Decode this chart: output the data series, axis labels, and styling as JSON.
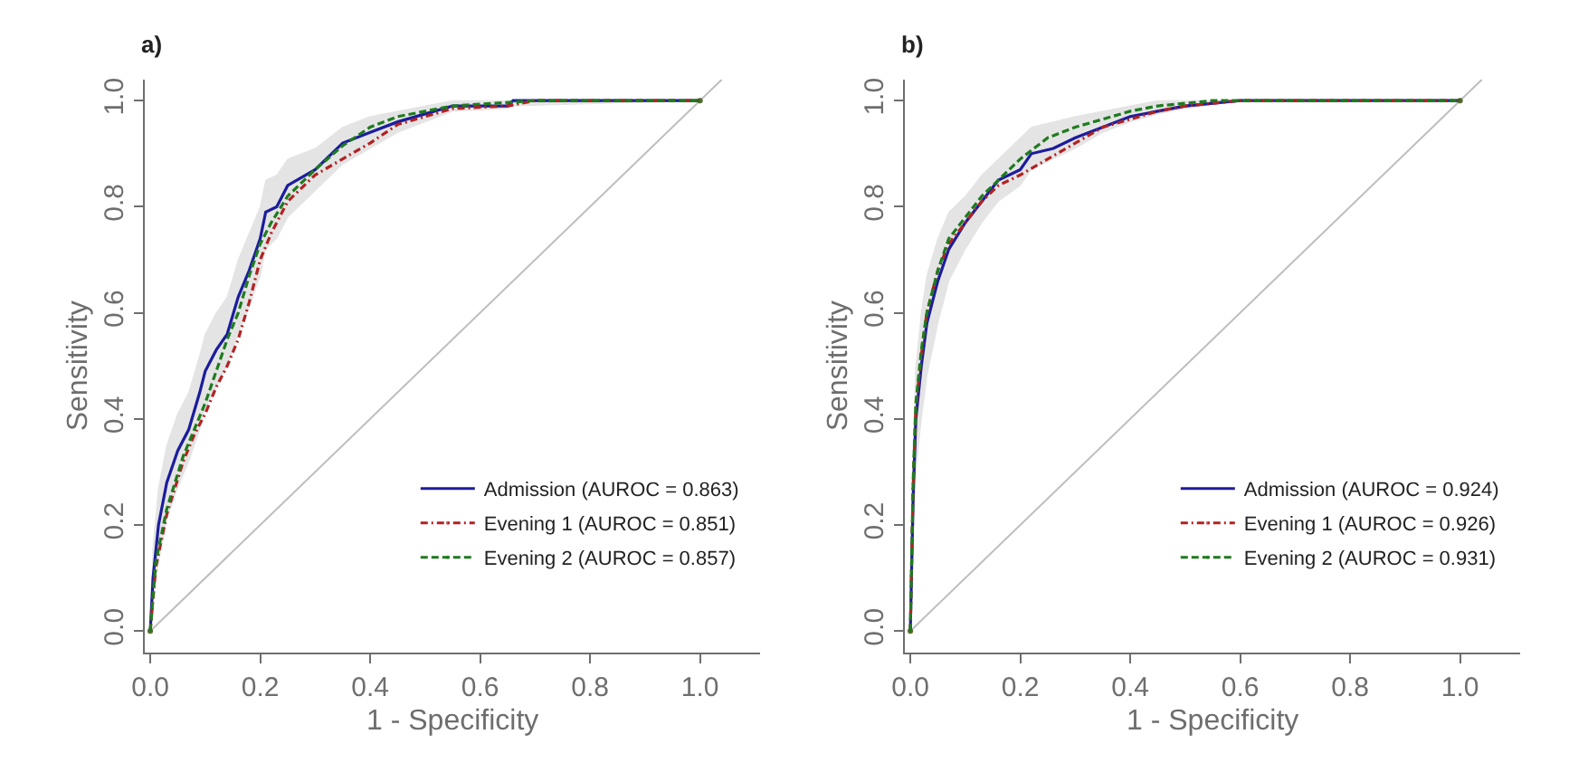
{
  "chart_data": [
    {
      "type": "line",
      "title": "a)",
      "xlabel": "1 - Specificity",
      "ylabel": "Sensitivity",
      "xlim": [
        -0.01,
        1.11
      ],
      "ylim": [
        -0.04,
        1.04
      ],
      "xticks": [
        {
          "value": 0,
          "label": "0.0"
        },
        {
          "value": 0.2,
          "label": "0.2"
        },
        {
          "value": 0.4,
          "label": "0.4"
        },
        {
          "value": 0.6,
          "label": "0.6"
        },
        {
          "value": 0.8,
          "label": "0.8"
        },
        {
          "value": 1,
          "label": "1.0"
        }
      ],
      "yticks": [
        {
          "value": 0,
          "label": "0.0"
        },
        {
          "value": 0.2,
          "label": "0.2"
        },
        {
          "value": 0.4,
          "label": "0.4"
        },
        {
          "value": 0.6,
          "label": "0.6"
        },
        {
          "value": 0.8,
          "label": "0.8"
        },
        {
          "value": 1,
          "label": "1.0"
        }
      ],
      "legend": "bottom right",
      "marker": "none",
      "series": [
        {
          "color": "#bebebe",
          "x": [
            0,
            1.04
          ],
          "values": [
            0,
            1.04
          ]
        },
        {
          "name": "Admission (AUROC = 0.863)",
          "color": "#1c1c9e",
          "line_style": "solid",
          "x": [
            0,
            0.005,
            0.015,
            0.03,
            0.05,
            0.07,
            0.09,
            0.1,
            0.12,
            0.14,
            0.16,
            0.18,
            0.2,
            0.21,
            0.23,
            0.25,
            0.3,
            0.35,
            0.4,
            0.45,
            0.5,
            0.55,
            0.65,
            0.66,
            1
          ],
          "values": [
            0,
            0.1,
            0.2,
            0.28,
            0.34,
            0.38,
            0.45,
            0.49,
            0.53,
            0.56,
            0.63,
            0.68,
            0.74,
            0.79,
            0.8,
            0.84,
            0.87,
            0.92,
            0.94,
            0.96,
            0.975,
            0.99,
            0.99,
            1,
            1
          ],
          "lower": [
            0,
            0.05,
            0.13,
            0.21,
            0.27,
            0.32,
            0.38,
            0.42,
            0.46,
            0.5,
            0.56,
            0.61,
            0.67,
            0.72,
            0.74,
            0.78,
            0.83,
            0.88,
            0.91,
            0.94,
            0.96,
            0.98,
            0.985,
            0.99,
            1
          ],
          "upper": [
            0,
            0.16,
            0.27,
            0.35,
            0.41,
            0.45,
            0.52,
            0.56,
            0.6,
            0.63,
            0.7,
            0.75,
            0.8,
            0.85,
            0.86,
            0.89,
            0.91,
            0.95,
            0.97,
            0.98,
            0.99,
            1,
            1,
            1,
            1
          ]
        },
        {
          "name": "Evening 1 (AUROC = 0.851)",
          "color": "#b22222",
          "line_style": "dashdot",
          "x": [
            0,
            0.01,
            0.03,
            0.06,
            0.08,
            0.1,
            0.12,
            0.14,
            0.16,
            0.18,
            0.2,
            0.22,
            0.25,
            0.3,
            0.35,
            0.4,
            0.45,
            0.5,
            0.55,
            0.65,
            0.7,
            1
          ],
          "values": [
            0,
            0.12,
            0.22,
            0.32,
            0.37,
            0.41,
            0.46,
            0.5,
            0.55,
            0.62,
            0.7,
            0.75,
            0.81,
            0.86,
            0.89,
            0.92,
            0.955,
            0.97,
            0.985,
            0.99,
            1,
            1
          ]
        },
        {
          "name": "Evening 2 (AUROC = 0.857)",
          "color": "#1e7b1e",
          "line_style": "dashed",
          "x": [
            0,
            0.01,
            0.03,
            0.06,
            0.08,
            0.1,
            0.12,
            0.14,
            0.16,
            0.18,
            0.2,
            0.22,
            0.25,
            0.3,
            0.35,
            0.4,
            0.45,
            0.5,
            0.55,
            0.7,
            1
          ],
          "values": [
            0,
            0.13,
            0.23,
            0.33,
            0.38,
            0.43,
            0.49,
            0.55,
            0.6,
            0.67,
            0.73,
            0.77,
            0.82,
            0.87,
            0.915,
            0.95,
            0.97,
            0.98,
            0.99,
            1,
            1
          ]
        }
      ]
    },
    {
      "type": "line",
      "title": "b)",
      "xlabel": "1 - Specificity",
      "ylabel": "Sensitivity",
      "xlim": [
        -0.01,
        1.11
      ],
      "ylim": [
        -0.04,
        1.04
      ],
      "xticks": [
        {
          "value": 0,
          "label": "0.0"
        },
        {
          "value": 0.2,
          "label": "0.2"
        },
        {
          "value": 0.4,
          "label": "0.4"
        },
        {
          "value": 0.6,
          "label": "0.6"
        },
        {
          "value": 0.8,
          "label": "0.8"
        },
        {
          "value": 1,
          "label": "1.0"
        }
      ],
      "yticks": [
        {
          "value": 0,
          "label": "0.0"
        },
        {
          "value": 0.2,
          "label": "0.2"
        },
        {
          "value": 0.4,
          "label": "0.4"
        },
        {
          "value": 0.6,
          "label": "0.6"
        },
        {
          "value": 0.8,
          "label": "0.8"
        },
        {
          "value": 1,
          "label": "1.0"
        }
      ],
      "legend": "bottom right",
      "marker": "none",
      "series": [
        {
          "color": "#bebebe",
          "x": [
            0,
            1.04
          ],
          "values": [
            0,
            1.04
          ]
        },
        {
          "name": "Admission (AUROC = 0.924)",
          "color": "#1c1c9e",
          "line_style": "solid",
          "x": [
            0,
            0.005,
            0.01,
            0.02,
            0.03,
            0.05,
            0.07,
            0.1,
            0.13,
            0.16,
            0.2,
            0.22,
            0.26,
            0.3,
            0.35,
            0.4,
            0.45,
            0.5,
            0.6,
            1
          ],
          "values": [
            0,
            0.25,
            0.4,
            0.5,
            0.58,
            0.66,
            0.72,
            0.77,
            0.81,
            0.85,
            0.87,
            0.9,
            0.91,
            0.93,
            0.95,
            0.97,
            0.98,
            0.99,
            1,
            1
          ],
          "lower": [
            0,
            0.15,
            0.3,
            0.4,
            0.48,
            0.58,
            0.66,
            0.72,
            0.77,
            0.81,
            0.84,
            0.87,
            0.89,
            0.91,
            0.94,
            0.96,
            0.975,
            0.985,
            1,
            1
          ],
          "upper": [
            0,
            0.35,
            0.5,
            0.6,
            0.67,
            0.74,
            0.79,
            0.82,
            0.86,
            0.89,
            0.93,
            0.95,
            0.96,
            0.97,
            0.98,
            0.99,
            1,
            1,
            1,
            1
          ]
        },
        {
          "name": "Evening 1 (AUROC = 0.926)",
          "color": "#b22222",
          "line_style": "dashdot",
          "x": [
            0,
            0.005,
            0.01,
            0.02,
            0.03,
            0.05,
            0.07,
            0.1,
            0.13,
            0.16,
            0.2,
            0.25,
            0.3,
            0.35,
            0.4,
            0.45,
            0.5,
            0.6,
            1
          ],
          "values": [
            0,
            0.27,
            0.42,
            0.52,
            0.6,
            0.68,
            0.73,
            0.77,
            0.81,
            0.84,
            0.86,
            0.89,
            0.92,
            0.95,
            0.965,
            0.98,
            0.99,
            1,
            1
          ]
        },
        {
          "name": "Evening 2 (AUROC = 0.931)",
          "color": "#1e7b1e",
          "line_style": "dashed",
          "x": [
            0,
            0.005,
            0.01,
            0.02,
            0.03,
            0.05,
            0.07,
            0.1,
            0.13,
            0.16,
            0.2,
            0.25,
            0.3,
            0.35,
            0.4,
            0.45,
            0.5,
            0.55,
            1
          ],
          "values": [
            0,
            0.28,
            0.43,
            0.53,
            0.6,
            0.68,
            0.74,
            0.78,
            0.82,
            0.85,
            0.89,
            0.93,
            0.95,
            0.965,
            0.98,
            0.99,
            0.995,
            1,
            1
          ]
        }
      ]
    }
  ]
}
